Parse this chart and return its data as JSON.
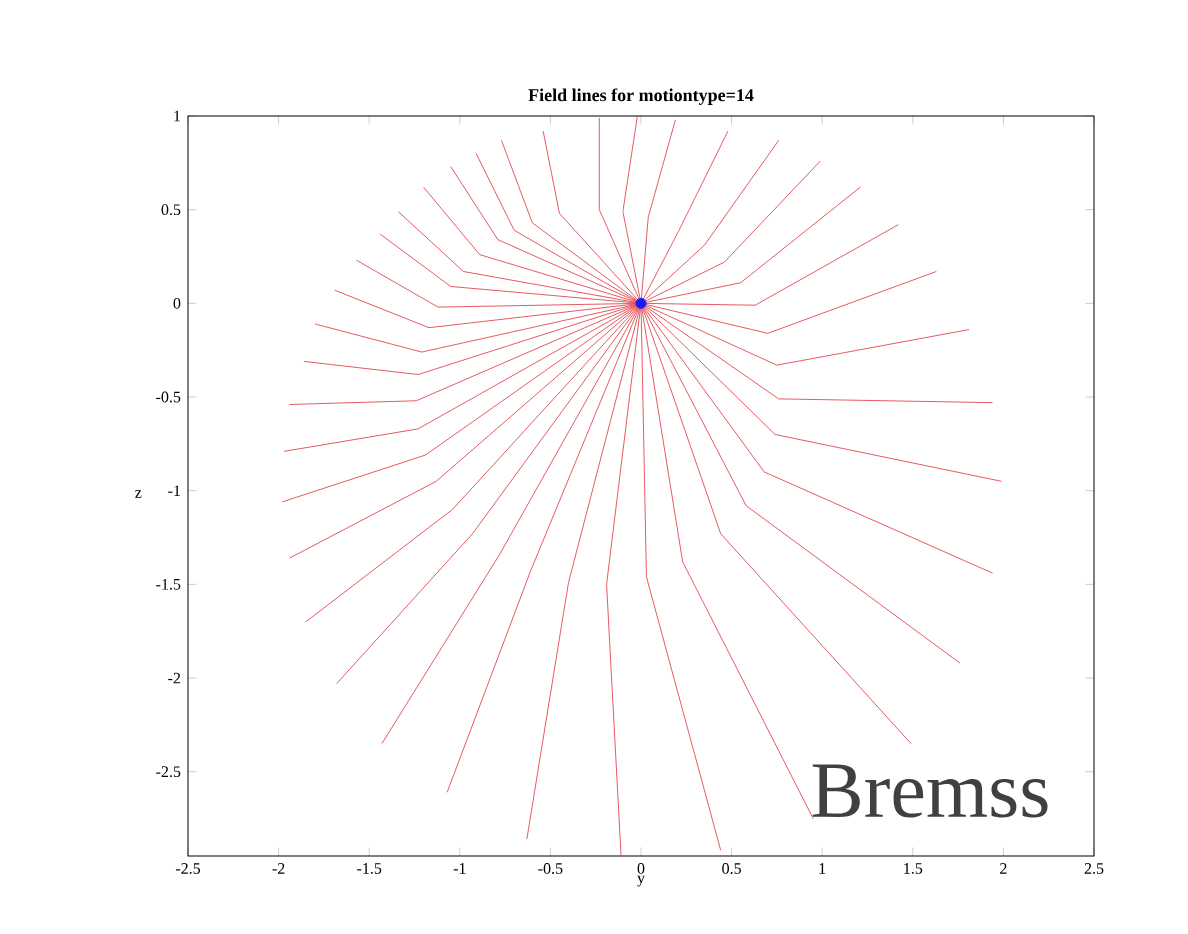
{
  "chart_data": {
    "type": "line",
    "title": "Field lines for motiontype=14",
    "xlabel": "y",
    "ylabel": "z",
    "xlim": [
      -2.5,
      2.5
    ],
    "ylim": [
      -2.95,
      1
    ],
    "xticks": [
      -2.5,
      -2,
      -1.5,
      -1,
      -0.5,
      0,
      0.5,
      1,
      1.5,
      2,
      2.5
    ],
    "yticks": [
      -2.5,
      -2,
      -1.5,
      -1,
      -0.5,
      0,
      0.5,
      1
    ],
    "annotations": [
      "Bremss"
    ],
    "series": [
      {
        "color": "#e0303a",
        "x": [
          0,
          -0.6,
          -0.77
        ],
        "values": [
          0,
          0.43,
          0.87
        ]
      },
      {
        "color": "#e0303a",
        "x": [
          0,
          -0.45,
          -0.54
        ],
        "values": [
          0,
          0.48,
          0.92
        ]
      },
      {
        "color": "#e0303a",
        "x": [
          0,
          -0.23,
          -0.23
        ],
        "values": [
          0,
          0.5,
          0.99
        ]
      },
      {
        "color": "#e0303a",
        "x": [
          0,
          -0.1,
          -0.02
        ],
        "values": [
          0,
          0.49,
          1.0
        ]
      },
      {
        "color": "#e0303a",
        "x": [
          0,
          0.04,
          0.19
        ],
        "values": [
          0,
          0.46,
          0.98
        ]
      },
      {
        "color": "#e0303a",
        "x": [
          0,
          0.21,
          0.48
        ],
        "values": [
          0,
          0.39,
          0.92
        ]
      },
      {
        "color": "#e0303a",
        "x": [
          0,
          0.35,
          0.76
        ],
        "values": [
          0,
          0.31,
          0.87
        ]
      },
      {
        "color": "#e0303a",
        "x": [
          0,
          0.46,
          0.99
        ],
        "values": [
          0,
          0.22,
          0.76
        ]
      },
      {
        "color": "#e0303a",
        "x": [
          0,
          0.55,
          1.21
        ],
        "values": [
          0,
          0.11,
          0.62
        ]
      },
      {
        "color": "#e0303a",
        "x": [
          0,
          0.63,
          1.42
        ],
        "values": [
          0,
          -0.01,
          0.42
        ]
      },
      {
        "color": "#e0303a",
        "x": [
          0,
          0.7,
          1.63
        ],
        "values": [
          0,
          -0.16,
          0.17
        ]
      },
      {
        "color": "#e0303a",
        "x": [
          0,
          0.75,
          1.81
        ],
        "values": [
          0,
          -0.33,
          -0.14
        ]
      },
      {
        "color": "#e0303a",
        "x": [
          0,
          0.76,
          1.94
        ],
        "values": [
          0,
          -0.51,
          -0.53
        ]
      },
      {
        "color": "#e0303a",
        "x": [
          0,
          0.74,
          1.99
        ],
        "values": [
          0,
          -0.7,
          -0.95
        ]
      },
      {
        "color": "#e0303a",
        "x": [
          0,
          0.68,
          1.94
        ],
        "values": [
          0,
          -0.9,
          -1.44
        ]
      },
      {
        "color": "#e0303a",
        "x": [
          0,
          0.58,
          1.76
        ],
        "values": [
          0,
          -1.08,
          -1.92
        ]
      },
      {
        "color": "#e0303a",
        "x": [
          0,
          0.44,
          1.49
        ],
        "values": [
          0,
          -1.23,
          -2.35
        ]
      },
      {
        "color": "#e0303a",
        "x": [
          0,
          0.23,
          0.95
        ],
        "values": [
          0,
          -1.38,
          -2.75
        ]
      },
      {
        "color": "#e0303a",
        "x": [
          0,
          0.03,
          0.44
        ],
        "values": [
          0,
          -1.46,
          -2.92
        ]
      },
      {
        "color": "#e0303a",
        "x": [
          0,
          -0.19,
          -0.11
        ],
        "values": [
          0,
          -1.5,
          -2.95
        ]
      },
      {
        "color": "#e0303a",
        "x": [
          0,
          -0.4,
          -0.63
        ],
        "values": [
          0,
          -1.49,
          -2.86
        ]
      },
      {
        "color": "#e0303a",
        "x": [
          0,
          -0.61,
          -1.07
        ],
        "values": [
          0,
          -1.43,
          -2.61
        ]
      },
      {
        "color": "#e0303a",
        "x": [
          0,
          -0.78,
          -1.43
        ],
        "values": [
          0,
          -1.34,
          -2.35
        ]
      },
      {
        "color": "#e0303a",
        "x": [
          0,
          -0.93,
          -1.68
        ],
        "values": [
          0,
          -1.23,
          -2.03
        ]
      },
      {
        "color": "#e0303a",
        "x": [
          0,
          -1.04,
          -1.85
        ],
        "values": [
          0,
          -1.1,
          -1.7
        ]
      },
      {
        "color": "#e0303a",
        "x": [
          0,
          -1.13,
          -1.94
        ],
        "values": [
          0,
          -0.95,
          -1.36
        ]
      },
      {
        "color": "#e0303a",
        "x": [
          0,
          -1.19,
          -1.98
        ],
        "values": [
          0,
          -0.81,
          -1.06
        ]
      },
      {
        "color": "#e0303a",
        "x": [
          0,
          -1.23,
          -1.97
        ],
        "values": [
          0,
          -0.67,
          -0.79
        ]
      },
      {
        "color": "#e0303a",
        "x": [
          0,
          -1.24,
          -1.94
        ],
        "values": [
          0,
          -0.52,
          -0.54
        ]
      },
      {
        "color": "#e0303a",
        "x": [
          0,
          -1.23,
          -1.86
        ],
        "values": [
          0,
          -0.38,
          -0.31
        ]
      },
      {
        "color": "#e0303a",
        "x": [
          0,
          -1.21,
          -1.8
        ],
        "values": [
          0,
          -0.26,
          -0.11
        ]
      },
      {
        "color": "#e0303a",
        "x": [
          0,
          -1.17,
          -1.69
        ],
        "values": [
          0,
          -0.13,
          0.07
        ]
      },
      {
        "color": "#e0303a",
        "x": [
          0,
          -1.12,
          -1.57
        ],
        "values": [
          0,
          -0.02,
          0.23
        ]
      },
      {
        "color": "#e0303a",
        "x": [
          0,
          -1.05,
          -1.44
        ],
        "values": [
          0,
          0.09,
          0.37
        ]
      },
      {
        "color": "#e0303a",
        "x": [
          0,
          -0.98,
          -1.34
        ],
        "values": [
          0,
          0.17,
          0.49
        ]
      },
      {
        "color": "#e0303a",
        "x": [
          0,
          -0.89,
          -1.2
        ],
        "values": [
          0,
          0.26,
          0.62
        ]
      },
      {
        "color": "#e0303a",
        "x": [
          0,
          -0.79,
          -1.05
        ],
        "values": [
          0,
          0.34,
          0.73
        ]
      },
      {
        "color": "#e0303a",
        "x": [
          0,
          -0.7,
          -0.91
        ],
        "values": [
          0,
          0.39,
          0.8
        ]
      },
      {
        "type": "scatter",
        "marker": "circle",
        "color": "#1a1aff",
        "x": [
          0
        ],
        "values": [
          0
        ]
      }
    ]
  }
}
